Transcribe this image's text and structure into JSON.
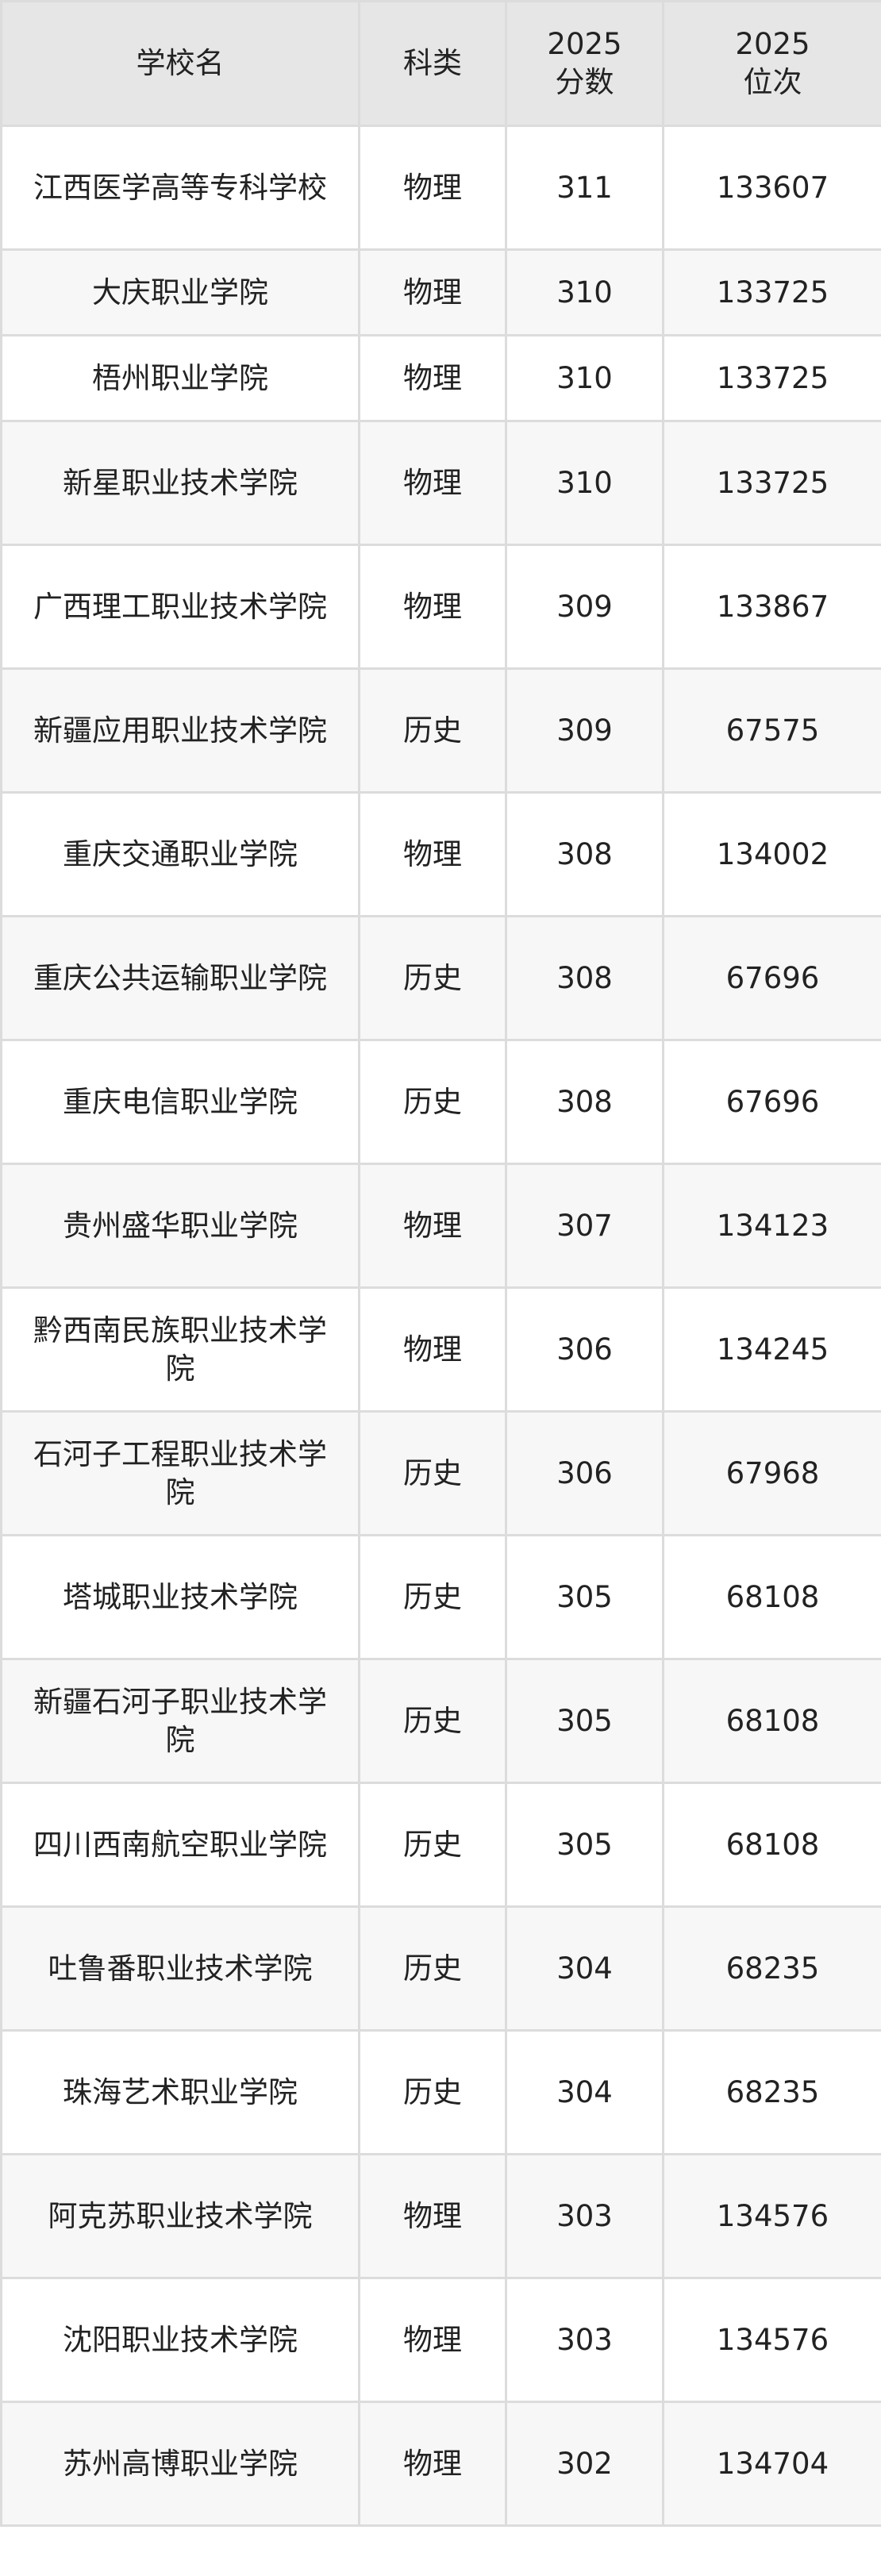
{
  "header": {
    "school": "学校名",
    "category": "科类",
    "score": "2025\n分数",
    "rank": "2025\n位次"
  },
  "rows": [
    {
      "school": "江西医学高等专科学校",
      "category": "物理",
      "score": "311",
      "rank": "133607"
    },
    {
      "school": "大庆职业学院",
      "category": "物理",
      "score": "310",
      "rank": "133725"
    },
    {
      "school": "梧州职业学院",
      "category": "物理",
      "score": "310",
      "rank": "133725"
    },
    {
      "school": "新星职业技术学院",
      "category": "物理",
      "score": "310",
      "rank": "133725"
    },
    {
      "school": "广西理工职业技术学院",
      "category": "物理",
      "score": "309",
      "rank": "133867"
    },
    {
      "school": "新疆应用职业技术学院",
      "category": "历史",
      "score": "309",
      "rank": "67575"
    },
    {
      "school": "重庆交通职业学院",
      "category": "物理",
      "score": "308",
      "rank": "134002"
    },
    {
      "school": "重庆公共运输职业学院",
      "category": "历史",
      "score": "308",
      "rank": "67696"
    },
    {
      "school": "重庆电信职业学院",
      "category": "历史",
      "score": "308",
      "rank": "67696"
    },
    {
      "school": "贵州盛华职业学院",
      "category": "物理",
      "score": "307",
      "rank": "134123"
    },
    {
      "school": "黔西南民族职业技术学院",
      "category": "物理",
      "score": "306",
      "rank": "134245"
    },
    {
      "school": "石河子工程职业技术学院",
      "category": "历史",
      "score": "306",
      "rank": "67968"
    },
    {
      "school": "塔城职业技术学院",
      "category": "历史",
      "score": "305",
      "rank": "68108"
    },
    {
      "school": "新疆石河子职业技术学院",
      "category": "历史",
      "score": "305",
      "rank": "68108"
    },
    {
      "school": "四川西南航空职业学院",
      "category": "历史",
      "score": "305",
      "rank": "68108"
    },
    {
      "school": "吐鲁番职业技术学院",
      "category": "历史",
      "score": "304",
      "rank": "68235"
    },
    {
      "school": "珠海艺术职业学院",
      "category": "历史",
      "score": "304",
      "rank": "68235"
    },
    {
      "school": "阿克苏职业技术学院",
      "category": "物理",
      "score": "303",
      "rank": "134576"
    },
    {
      "school": "沈阳职业技术学院",
      "category": "物理",
      "score": "303",
      "rank": "134576"
    },
    {
      "school": "苏州高博职业学院",
      "category": "物理",
      "score": "302",
      "rank": "134704"
    }
  ]
}
